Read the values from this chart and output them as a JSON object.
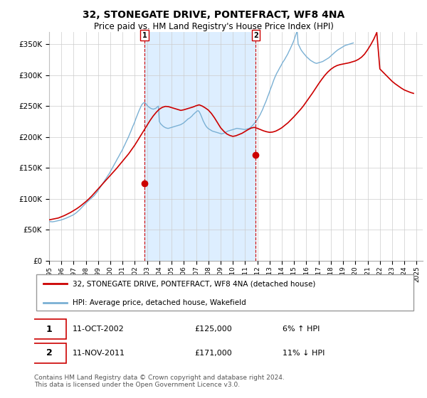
{
  "title": "32, STONEGATE DRIVE, PONTEFRACT, WF8 4NA",
  "subtitle": "Price paid vs. HM Land Registry's House Price Index (HPI)",
  "legend_line1": "32, STONEGATE DRIVE, PONTEFRACT, WF8 4NA (detached house)",
  "legend_line2": "HPI: Average price, detached house, Wakefield",
  "annotation1_date": "11-OCT-2002",
  "annotation1_price": "£125,000",
  "annotation1_hpi": "6% ↑ HPI",
  "annotation2_date": "11-NOV-2011",
  "annotation2_price": "£171,000",
  "annotation2_hpi": "11% ↓ HPI",
  "copyright": "Contains HM Land Registry data © Crown copyright and database right 2024.\nThis data is licensed under the Open Government Licence v3.0.",
  "hpi_color": "#7ab0d4",
  "price_color": "#cc0000",
  "shade_color": "#ddeeff",
  "dashed_color": "#cc0000",
  "marker1_x": 2002.79,
  "marker1_y": 125000,
  "marker2_x": 2011.87,
  "marker2_y": 171000,
  "ylim": [
    0,
    370000
  ],
  "xlim_start": 1995.0,
  "xlim_end": 2025.5,
  "yticks": [
    0,
    50000,
    100000,
    150000,
    200000,
    250000,
    300000,
    350000
  ],
  "ytick_labels": [
    "£0",
    "£50K",
    "£100K",
    "£150K",
    "£200K",
    "£250K",
    "£300K",
    "£350K"
  ],
  "xticks": [
    1995,
    1996,
    1997,
    1998,
    1999,
    2000,
    2001,
    2002,
    2003,
    2004,
    2005,
    2006,
    2007,
    2008,
    2009,
    2010,
    2011,
    2012,
    2013,
    2014,
    2015,
    2016,
    2017,
    2018,
    2019,
    2020,
    2021,
    2022,
    2023,
    2024,
    2025
  ],
  "hpi_years": [
    1995.0,
    1995.08,
    1995.17,
    1995.25,
    1995.33,
    1995.42,
    1995.5,
    1995.58,
    1995.67,
    1995.75,
    1995.83,
    1995.92,
    1996.0,
    1996.08,
    1996.17,
    1996.25,
    1996.33,
    1996.42,
    1996.5,
    1996.58,
    1996.67,
    1996.75,
    1996.83,
    1996.92,
    1997.0,
    1997.08,
    1997.17,
    1997.25,
    1997.33,
    1997.42,
    1997.5,
    1997.58,
    1997.67,
    1997.75,
    1997.83,
    1997.92,
    1998.0,
    1998.08,
    1998.17,
    1998.25,
    1998.33,
    1998.42,
    1998.5,
    1998.58,
    1998.67,
    1998.75,
    1998.83,
    1998.92,
    1999.0,
    1999.08,
    1999.17,
    1999.25,
    1999.33,
    1999.42,
    1999.5,
    1999.58,
    1999.67,
    1999.75,
    1999.83,
    1999.92,
    2000.0,
    2000.08,
    2000.17,
    2000.25,
    2000.33,
    2000.42,
    2000.5,
    2000.58,
    2000.67,
    2000.75,
    2000.83,
    2000.92,
    2001.0,
    2001.08,
    2001.17,
    2001.25,
    2001.33,
    2001.42,
    2001.5,
    2001.58,
    2001.67,
    2001.75,
    2001.83,
    2001.92,
    2002.0,
    2002.08,
    2002.17,
    2002.25,
    2002.33,
    2002.42,
    2002.5,
    2002.58,
    2002.67,
    2002.75,
    2002.83,
    2002.92,
    2003.0,
    2003.08,
    2003.17,
    2003.25,
    2003.33,
    2003.42,
    2003.5,
    2003.58,
    2003.67,
    2003.75,
    2003.83,
    2003.92,
    2004.0,
    2004.08,
    2004.17,
    2004.25,
    2004.33,
    2004.42,
    2004.5,
    2004.58,
    2004.67,
    2004.75,
    2004.83,
    2004.92,
    2005.0,
    2005.08,
    2005.17,
    2005.25,
    2005.33,
    2005.42,
    2005.5,
    2005.58,
    2005.67,
    2005.75,
    2005.83,
    2005.92,
    2006.0,
    2006.08,
    2006.17,
    2006.25,
    2006.33,
    2006.42,
    2006.5,
    2006.58,
    2006.67,
    2006.75,
    2006.83,
    2006.92,
    2007.0,
    2007.08,
    2007.17,
    2007.25,
    2007.33,
    2007.42,
    2007.5,
    2007.58,
    2007.67,
    2007.75,
    2007.83,
    2007.92,
    2008.0,
    2008.08,
    2008.17,
    2008.25,
    2008.33,
    2008.42,
    2008.5,
    2008.58,
    2008.67,
    2008.75,
    2008.83,
    2008.92,
    2009.0,
    2009.08,
    2009.17,
    2009.25,
    2009.33,
    2009.42,
    2009.5,
    2009.58,
    2009.67,
    2009.75,
    2009.83,
    2009.92,
    2010.0,
    2010.08,
    2010.17,
    2010.25,
    2010.33,
    2010.42,
    2010.5,
    2010.58,
    2010.67,
    2010.75,
    2010.83,
    2010.92,
    2011.0,
    2011.08,
    2011.17,
    2011.25,
    2011.33,
    2011.42,
    2011.5,
    2011.58,
    2011.67,
    2011.75,
    2011.83,
    2011.92,
    2012.0,
    2012.08,
    2012.17,
    2012.25,
    2012.33,
    2012.42,
    2012.5,
    2012.58,
    2012.67,
    2012.75,
    2012.83,
    2012.92,
    2013.0,
    2013.08,
    2013.17,
    2013.25,
    2013.33,
    2013.42,
    2013.5,
    2013.58,
    2013.67,
    2013.75,
    2013.83,
    2013.92,
    2014.0,
    2014.08,
    2014.17,
    2014.25,
    2014.33,
    2014.42,
    2014.5,
    2014.58,
    2014.67,
    2014.75,
    2014.83,
    2014.92,
    2015.0,
    2015.08,
    2015.17,
    2015.25,
    2015.33,
    2015.42,
    2015.5,
    2015.58,
    2015.67,
    2015.75,
    2015.83,
    2015.92,
    2016.0,
    2016.08,
    2016.17,
    2016.25,
    2016.33,
    2016.42,
    2016.5,
    2016.58,
    2016.67,
    2016.75,
    2016.83,
    2016.92,
    2017.0,
    2017.08,
    2017.17,
    2017.25,
    2017.33,
    2017.42,
    2017.5,
    2017.58,
    2017.67,
    2017.75,
    2017.83,
    2017.92,
    2018.0,
    2018.08,
    2018.17,
    2018.25,
    2018.33,
    2018.42,
    2018.5,
    2018.58,
    2018.67,
    2018.75,
    2018.83,
    2018.92,
    2019.0,
    2019.08,
    2019.17,
    2019.25,
    2019.33,
    2019.42,
    2019.5,
    2019.58,
    2019.67,
    2019.75,
    2019.83,
    2019.92,
    2020.0,
    2020.08,
    2020.17,
    2020.25,
    2020.33,
    2020.42,
    2020.5,
    2020.58,
    2020.67,
    2020.75,
    2020.83,
    2020.92,
    2021.0,
    2021.08,
    2021.17,
    2021.25,
    2021.33,
    2021.42,
    2021.5,
    2021.58,
    2021.67,
    2021.75,
    2021.83,
    2021.92,
    2022.0,
    2022.08,
    2022.17,
    2022.25,
    2022.33,
    2022.42,
    2022.5,
    2022.58,
    2022.67,
    2022.75,
    2022.83,
    2022.92,
    2023.0,
    2023.08,
    2023.17,
    2023.25,
    2023.33,
    2023.42,
    2023.5,
    2023.58,
    2023.67,
    2023.75,
    2023.83,
    2023.92,
    2024.0,
    2024.08,
    2024.17,
    2024.25,
    2024.33,
    2024.42,
    2024.5,
    2024.58,
    2024.67,
    2024.75
  ],
  "hpi_values": [
    63000,
    63200,
    63100,
    62800,
    63000,
    63300,
    63600,
    64000,
    64400,
    64700,
    65100,
    65500,
    66000,
    66500,
    67100,
    67700,
    68300,
    69000,
    69800,
    70500,
    71200,
    72000,
    72800,
    73500,
    74500,
    75500,
    76800,
    78000,
    79500,
    81000,
    82500,
    84200,
    86000,
    87800,
    89500,
    91200,
    93000,
    94500,
    96000,
    97500,
    99000,
    100500,
    102000,
    103500,
    105000,
    107000,
    109000,
    111000,
    113500,
    116000,
    118500,
    121000,
    123500,
    126000,
    128500,
    131000,
    133500,
    136000,
    138500,
    141000,
    144000,
    147000,
    150000,
    153000,
    156000,
    159000,
    162000,
    165000,
    168000,
    171000,
    174000,
    177000,
    180000,
    183500,
    187000,
    190500,
    194000,
    197500,
    201000,
    205000,
    209000,
    213000,
    217000,
    221000,
    225000,
    229500,
    234000,
    238000,
    242000,
    246000,
    249500,
    252500,
    254500,
    255500,
    255000,
    253500,
    251000,
    249500,
    248000,
    247000,
    246000,
    245500,
    245000,
    245500,
    246000,
    247000,
    248500,
    250000,
    225000,
    222000,
    220000,
    218500,
    217000,
    216000,
    215000,
    214500,
    214000,
    214000,
    214500,
    215000,
    215500,
    216000,
    216500,
    217000,
    217500,
    218000,
    218500,
    219000,
    219500,
    220000,
    221000,
    222000,
    223000,
    224500,
    226000,
    227500,
    229000,
    230000,
    231000,
    232500,
    234000,
    236000,
    237500,
    239000,
    240500,
    242000,
    242500,
    241000,
    238000,
    234000,
    230000,
    226000,
    222500,
    219500,
    217000,
    215000,
    213500,
    212500,
    211500,
    210500,
    209500,
    209000,
    208500,
    208000,
    207500,
    207000,
    206500,
    206000,
    205500,
    205000,
    205500,
    206000,
    206800,
    207500,
    208500,
    209500,
    210000,
    210500,
    211000,
    211500,
    212000,
    212500,
    213000,
    213500,
    214000,
    213800,
    213500,
    213200,
    213000,
    212800,
    212500,
    212200,
    212000,
    212500,
    213000,
    213500,
    214000,
    215000,
    216500,
    218000,
    220000,
    222000,
    224000,
    226000,
    228500,
    231000,
    234000,
    237000,
    240500,
    244000,
    248000,
    252000,
    256000,
    260000,
    264500,
    269000,
    273500,
    278000,
    282500,
    287000,
    291500,
    296000,
    299500,
    303000,
    306000,
    309000,
    312000,
    315000,
    318000,
    321000,
    323500,
    326000,
    329000,
    332000,
    335000,
    338500,
    342000,
    345500,
    349000,
    353000,
    357000,
    362000,
    367000,
    372000,
    350000,
    347000,
    343500,
    340500,
    338000,
    336000,
    334000,
    332000,
    330000,
    328500,
    327000,
    325500,
    324000,
    323000,
    322000,
    321000,
    320000,
    319500,
    319000,
    319500,
    320000,
    320500,
    321000,
    321500,
    322000,
    323000,
    324000,
    325000,
    326000,
    327000,
    328000,
    329500,
    331000,
    332500,
    334000,
    335500,
    337000,
    338500,
    340000,
    341000,
    342000,
    343000,
    344000,
    345000,
    346000,
    347000,
    348000,
    348500,
    349000,
    349500,
    350000,
    350500,
    351000,
    351500,
    352000
  ],
  "price_years": [
    1995.0,
    1995.25,
    1995.5,
    1995.75,
    1996.0,
    1996.25,
    1996.5,
    1996.75,
    1997.0,
    1997.25,
    1997.5,
    1997.75,
    1998.0,
    1998.25,
    1998.5,
    1998.75,
    1999.0,
    1999.25,
    1999.5,
    1999.75,
    2000.0,
    2000.25,
    2000.5,
    2000.75,
    2001.0,
    2001.25,
    2001.5,
    2001.75,
    2002.0,
    2002.25,
    2002.5,
    2002.75,
    2003.0,
    2003.25,
    2003.5,
    2003.75,
    2004.0,
    2004.25,
    2004.5,
    2004.75,
    2005.0,
    2005.25,
    2005.5,
    2005.75,
    2006.0,
    2006.25,
    2006.5,
    2006.75,
    2007.0,
    2007.25,
    2007.5,
    2007.75,
    2008.0,
    2008.25,
    2008.5,
    2008.75,
    2009.0,
    2009.25,
    2009.5,
    2009.75,
    2010.0,
    2010.25,
    2010.5,
    2010.75,
    2011.0,
    2011.25,
    2011.5,
    2011.75,
    2012.0,
    2012.25,
    2012.5,
    2012.75,
    2013.0,
    2013.25,
    2013.5,
    2013.75,
    2014.0,
    2014.25,
    2014.5,
    2014.75,
    2015.0,
    2015.25,
    2015.5,
    2015.75,
    2016.0,
    2016.25,
    2016.5,
    2016.75,
    2017.0,
    2017.25,
    2017.5,
    2017.75,
    2018.0,
    2018.25,
    2018.5,
    2018.75,
    2019.0,
    2019.25,
    2019.5,
    2019.75,
    2020.0,
    2020.25,
    2020.5,
    2020.75,
    2021.0,
    2021.25,
    2021.5,
    2021.75,
    2022.0,
    2022.25,
    2022.5,
    2022.75,
    2023.0,
    2023.25,
    2023.5,
    2023.75,
    2024.0,
    2024.25,
    2024.5,
    2024.75
  ],
  "price_values": [
    66000,
    67000,
    68000,
    69000,
    71000,
    73000,
    75500,
    78000,
    81000,
    84000,
    87500,
    91500,
    95500,
    100000,
    105000,
    110500,
    116000,
    121500,
    127000,
    132500,
    138000,
    143500,
    149000,
    155000,
    161000,
    167000,
    173000,
    180000,
    187000,
    195000,
    203000,
    211000,
    219000,
    227000,
    234000,
    240000,
    245000,
    248000,
    249500,
    249000,
    247500,
    246000,
    244500,
    243000,
    244000,
    245500,
    247000,
    248500,
    250500,
    252000,
    250000,
    247000,
    243500,
    238000,
    231000,
    223000,
    215000,
    209500,
    205000,
    202500,
    201000,
    202000,
    204000,
    206000,
    209000,
    212000,
    214500,
    215500,
    214000,
    212000,
    210000,
    208500,
    207500,
    208000,
    209500,
    212000,
    215000,
    219000,
    223000,
    228000,
    233000,
    238500,
    244000,
    250000,
    257000,
    264000,
    271000,
    278500,
    286000,
    293000,
    299500,
    305000,
    309500,
    313000,
    315500,
    317000,
    318000,
    319000,
    320000,
    321500,
    323000,
    325500,
    329000,
    334000,
    341000,
    349000,
    358000,
    369000,
    310000,
    305000,
    300000,
    295000,
    290000,
    286000,
    282500,
    279000,
    276000,
    274000,
    272000,
    270500,
    269000,
    268000,
    267000,
    266500
  ]
}
